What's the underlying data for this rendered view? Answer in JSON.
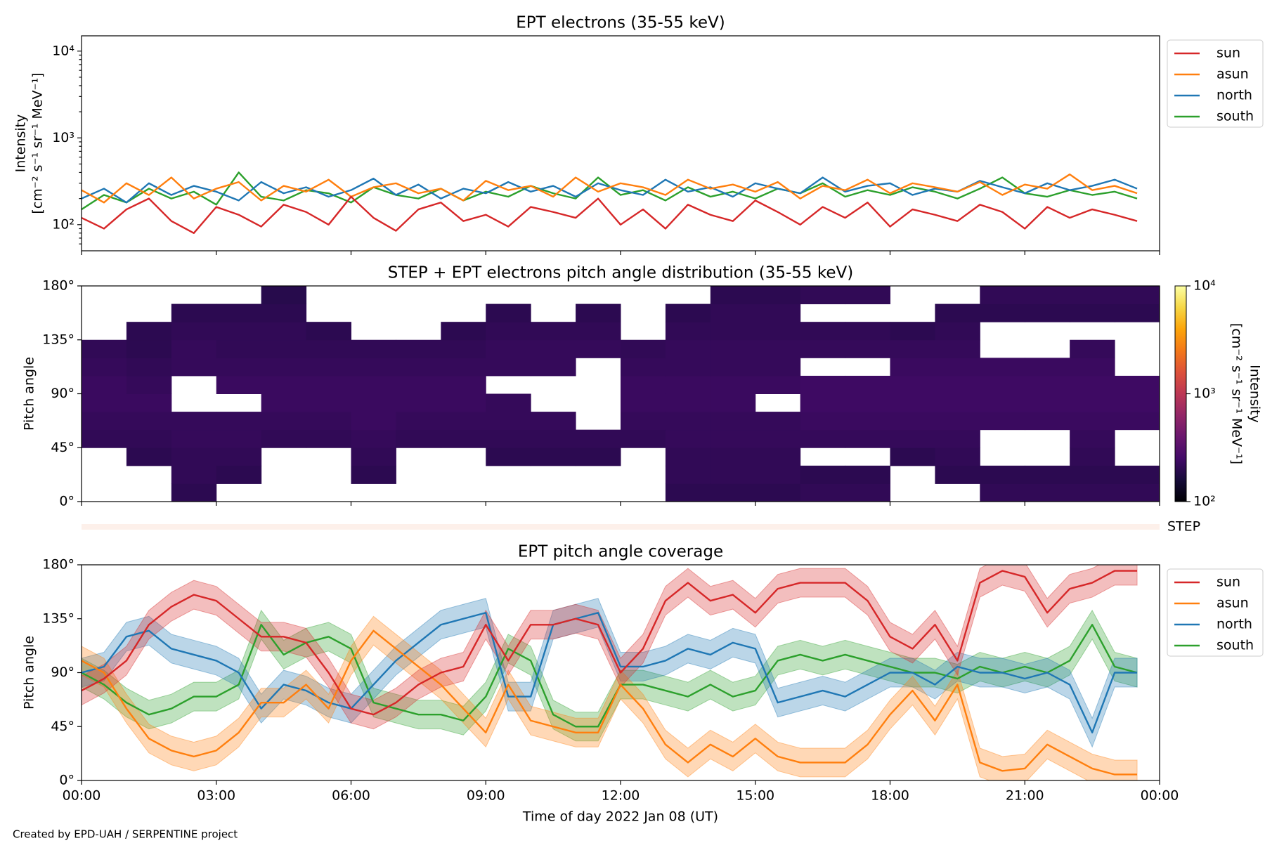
{
  "chart_data": [
    {
      "type": "line",
      "title": "EPT electrons (35-55 keV)",
      "y_label": [
        "Intensity",
        "[cm⁻² s⁻¹ sr⁻¹ MeV⁻¹]"
      ],
      "log_y": true,
      "legend": "outside right",
      "x": [
        0,
        0.5,
        1,
        1.5,
        2,
        2.5,
        3,
        3.5,
        4,
        4.5,
        5,
        5.5,
        6,
        6.5,
        7,
        7.5,
        8,
        8.5,
        9,
        9.5,
        10,
        10.5,
        11,
        11.5,
        12,
        12.5,
        13,
        13.5,
        14,
        14.5,
        15,
        15.5,
        16,
        16.5,
        17,
        17.5,
        18,
        18.5,
        19,
        19.5,
        20,
        20.5,
        21,
        21.5,
        22,
        22.5,
        23,
        23.5
      ],
      "xlim": [
        0,
        24
      ],
      "xticks": [
        0,
        3,
        6,
        9,
        12,
        15,
        18,
        21,
        24
      ],
      "ylim": [
        50,
        15000
      ],
      "yticks": [
        {
          "value": 100,
          "label": "10²"
        },
        {
          "value": 1000,
          "label": "10³"
        },
        {
          "value": 10000,
          "label": "10⁴"
        }
      ],
      "series": [
        {
          "name": "sun",
          "color": "#d62728",
          "values": [
            120,
            90,
            150,
            200,
            110,
            80,
            160,
            130,
            95,
            170,
            140,
            100,
            210,
            120,
            85,
            150,
            180,
            110,
            130,
            95,
            160,
            140,
            120,
            200,
            100,
            150,
            90,
            170,
            130,
            110,
            190,
            140,
            100,
            160,
            120,
            180,
            95,
            150,
            130,
            110,
            170,
            140,
            90,
            160,
            120,
            150,
            130,
            110
          ]
        },
        {
          "name": "asun",
          "color": "#ff7f0e",
          "values": [
            250,
            180,
            300,
            220,
            350,
            200,
            260,
            310,
            190,
            280,
            240,
            330,
            210,
            270,
            300,
            230,
            260,
            190,
            320,
            250,
            280,
            210,
            350,
            240,
            300,
            270,
            220,
            330,
            260,
            290,
            240,
            310,
            200,
            280,
            250,
            330,
            230,
            300,
            270,
            240,
            310,
            220,
            290,
            260,
            380,
            250,
            280,
            230
          ]
        },
        {
          "name": "north",
          "color": "#1f77b4",
          "values": [
            200,
            260,
            180,
            300,
            220,
            280,
            240,
            190,
            310,
            230,
            270,
            210,
            250,
            340,
            220,
            290,
            200,
            260,
            230,
            310,
            240,
            280,
            210,
            300,
            250,
            220,
            330,
            240,
            270,
            210,
            300,
            260,
            230,
            350,
            240,
            280,
            300,
            220,
            260,
            240,
            320,
            270,
            230,
            300,
            250,
            280,
            330,
            260
          ]
        },
        {
          "name": "south",
          "color": "#2ca02c",
          "values": [
            150,
            220,
            180,
            260,
            200,
            240,
            170,
            400,
            210,
            190,
            250,
            230,
            180,
            270,
            220,
            200,
            260,
            190,
            240,
            210,
            280,
            230,
            200,
            350,
            220,
            250,
            190,
            270,
            210,
            240,
            200,
            260,
            230,
            300,
            210,
            250,
            220,
            270,
            240,
            200,
            260,
            350,
            230,
            210,
            250,
            220,
            240,
            200
          ]
        }
      ]
    },
    {
      "type": "heatmap",
      "title": "STEP + EPT electrons pitch angle distribution (35-55 keV)",
      "y_label": [
        "Pitch angle"
      ],
      "colormap": "inferno",
      "step_label": "STEP",
      "colorbar_label": [
        "Intensity",
        "[cm⁻² s⁻¹ sr⁻¹ MeV⁻¹]"
      ],
      "x_edges": [
        0,
        1,
        2,
        3,
        4,
        5,
        6,
        7,
        8,
        9,
        10,
        11,
        12,
        13,
        14,
        15,
        16,
        17,
        18,
        19,
        20,
        21,
        22,
        23,
        24
      ],
      "y_edges": [
        0,
        15,
        30,
        45,
        60,
        75,
        90,
        105,
        120,
        135,
        150,
        165,
        180
      ],
      "xlim": [
        0,
        24
      ],
      "xticks": [
        0,
        3,
        6,
        9,
        12,
        15,
        18,
        21,
        24
      ],
      "ylim": [
        0,
        180
      ],
      "yticks": [
        {
          "value": 0,
          "label": "0°"
        },
        {
          "value": 45,
          "label": "45°"
        },
        {
          "value": 90,
          "label": "90°"
        },
        {
          "value": 135,
          "label": "135°"
        },
        {
          "value": 180,
          "label": "180°"
        }
      ],
      "zlim": [
        100,
        10000
      ],
      "zticks": [
        {
          "value": 100,
          "label": "10²"
        },
        {
          "value": 1000,
          "label": "10³"
        },
        {
          "value": 10000,
          "label": "10⁴"
        }
      ],
      "z": [
        [
          null,
          null,
          null,
          210,
          220,
          230,
          230,
          220,
          210,
          null,
          null,
          null
        ],
        [
          null,
          null,
          200,
          210,
          220,
          230,
          220,
          210,
          200,
          200,
          null,
          null
        ],
        [
          200,
          210,
          210,
          220,
          220,
          null,
          null,
          220,
          220,
          210,
          200,
          null
        ],
        [
          null,
          200,
          210,
          220,
          220,
          null,
          230,
          220,
          210,
          210,
          200,
          null
        ],
        [
          null,
          null,
          null,
          210,
          220,
          230,
          230,
          220,
          210,
          210,
          200,
          190
        ],
        [
          null,
          null,
          null,
          210,
          220,
          230,
          230,
          220,
          210,
          200,
          null,
          null
        ],
        [
          null,
          200,
          210,
          220,
          230,
          230,
          230,
          220,
          210,
          null,
          null,
          null
        ],
        [
          null,
          null,
          null,
          210,
          220,
          230,
          230,
          220,
          210,
          null,
          null,
          null
        ],
        [
          null,
          null,
          null,
          210,
          220,
          230,
          230,
          220,
          210,
          200,
          null,
          null
        ],
        [
          null,
          null,
          200,
          210,
          220,
          220,
          null,
          220,
          220,
          210,
          200,
          null
        ],
        [
          null,
          null,
          200,
          210,
          220,
          null,
          null,
          220,
          220,
          210,
          null,
          null
        ],
        [
          null,
          null,
          200,
          210,
          null,
          null,
          null,
          null,
          220,
          210,
          200,
          null
        ],
        [
          null,
          null,
          null,
          210,
          220,
          230,
          230,
          220,
          210,
          null,
          null,
          null
        ],
        [
          200,
          210,
          210,
          220,
          220,
          230,
          230,
          220,
          220,
          210,
          200,
          null
        ],
        [
          200,
          210,
          210,
          220,
          220,
          230,
          230,
          220,
          220,
          210,
          210,
          200
        ],
        [
          200,
          210,
          210,
          220,
          220,
          null,
          230,
          220,
          220,
          210,
          210,
          200
        ],
        [
          210,
          200,
          null,
          220,
          230,
          240,
          240,
          null,
          220,
          210,
          null,
          210
        ],
        [
          210,
          200,
          null,
          220,
          230,
          240,
          240,
          null,
          220,
          210,
          null,
          210
        ],
        [
          null,
          null,
          200,
          220,
          230,
          240,
          240,
          230,
          220,
          200,
          null,
          null
        ],
        [
          null,
          200,
          210,
          220,
          230,
          240,
          240,
          230,
          220,
          210,
          200,
          null
        ],
        [
          210,
          200,
          null,
          null,
          230,
          240,
          240,
          230,
          null,
          null,
          200,
          210
        ],
        [
          210,
          200,
          null,
          null,
          230,
          240,
          240,
          230,
          null,
          null,
          200,
          210
        ],
        [
          210,
          200,
          210,
          220,
          230,
          240,
          240,
          230,
          220,
          null,
          200,
          210
        ],
        [
          210,
          200,
          null,
          null,
          230,
          240,
          240,
          null,
          null,
          null,
          200,
          210
        ]
      ]
    },
    {
      "type": "line",
      "title": "EPT pitch angle coverage",
      "y_label": [
        "Pitch angle"
      ],
      "x_label": "Time of day 2022 Jan 08 (UT)",
      "legend": "outside right",
      "band_halfwidth": 12,
      "x": [
        0,
        0.5,
        1,
        1.5,
        2,
        2.5,
        3,
        3.5,
        4,
        4.5,
        5,
        5.5,
        6,
        6.5,
        7,
        7.5,
        8,
        8.5,
        9,
        9.5,
        10,
        10.5,
        11,
        11.5,
        12,
        12.5,
        13,
        13.5,
        14,
        14.5,
        15,
        15.5,
        16,
        16.5,
        17,
        17.5,
        18,
        18.5,
        19,
        19.5,
        20,
        20.5,
        21,
        21.5,
        22,
        22.5,
        23,
        23.5
      ],
      "xlim": [
        0,
        24
      ],
      "xticks": [
        {
          "value": 0,
          "label": "00:00"
        },
        {
          "value": 3,
          "label": "03:00"
        },
        {
          "value": 6,
          "label": "06:00"
        },
        {
          "value": 9,
          "label": "09:00"
        },
        {
          "value": 12,
          "label": "12:00"
        },
        {
          "value": 15,
          "label": "15:00"
        },
        {
          "value": 18,
          "label": "18:00"
        },
        {
          "value": 21,
          "label": "21:00"
        },
        {
          "value": 24,
          "label": "00:00"
        }
      ],
      "ylim": [
        0,
        180
      ],
      "yticks": [
        {
          "value": 0,
          "label": "0°"
        },
        {
          "value": 45,
          "label": "45°"
        },
        {
          "value": 90,
          "label": "90°"
        },
        {
          "value": 135,
          "label": "135°"
        },
        {
          "value": 180,
          "label": "180°"
        }
      ],
      "series": [
        {
          "name": "sun",
          "color": "#d62728",
          "values": [
            75,
            85,
            100,
            130,
            145,
            155,
            150,
            135,
            120,
            120,
            115,
            90,
            60,
            55,
            65,
            80,
            90,
            95,
            130,
            100,
            130,
            130,
            135,
            130,
            90,
            110,
            150,
            165,
            150,
            155,
            140,
            160,
            165,
            165,
            165,
            150,
            120,
            110,
            130,
            100,
            165,
            175,
            170,
            140,
            160,
            165,
            175,
            175
          ]
        },
        {
          "name": "asun",
          "color": "#ff7f0e",
          "values": [
            100,
            90,
            60,
            35,
            25,
            20,
            25,
            40,
            65,
            65,
            80,
            60,
            100,
            125,
            110,
            95,
            80,
            60,
            40,
            80,
            50,
            45,
            40,
            40,
            80,
            60,
            30,
            15,
            30,
            20,
            35,
            20,
            15,
            15,
            15,
            30,
            55,
            75,
            50,
            80,
            15,
            8,
            10,
            30,
            20,
            10,
            5,
            5
          ]
        },
        {
          "name": "north",
          "color": "#1f77b4",
          "values": [
            90,
            95,
            120,
            125,
            110,
            105,
            100,
            90,
            60,
            80,
            75,
            65,
            60,
            80,
            100,
            115,
            130,
            135,
            140,
            70,
            70,
            130,
            135,
            140,
            95,
            95,
            100,
            110,
            105,
            115,
            110,
            65,
            70,
            75,
            70,
            80,
            90,
            90,
            80,
            95,
            90,
            90,
            85,
            90,
            80,
            40,
            90,
            90
          ]
        },
        {
          "name": "south",
          "color": "#2ca02c",
          "values": [
            90,
            80,
            65,
            55,
            60,
            70,
            70,
            80,
            130,
            105,
            115,
            120,
            110,
            65,
            60,
            55,
            55,
            50,
            70,
            110,
            100,
            55,
            45,
            45,
            80,
            80,
            75,
            70,
            80,
            70,
            75,
            100,
            105,
            100,
            105,
            100,
            95,
            90,
            90,
            85,
            95,
            90,
            95,
            90,
            100,
            130,
            95,
            90
          ]
        }
      ]
    }
  ],
  "footer": "Created by EPD-UAH / SERPENTINE project"
}
